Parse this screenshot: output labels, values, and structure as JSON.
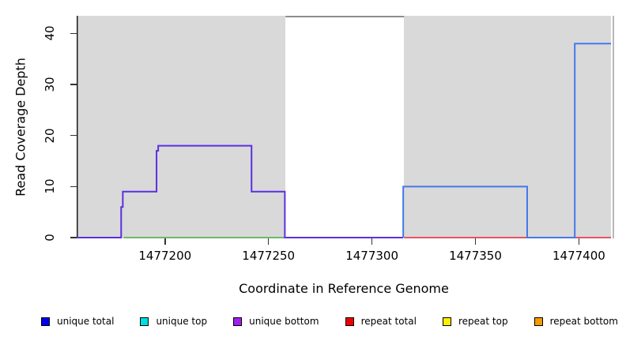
{
  "figure": {
    "xlabel": "Coordinate in Reference Genome",
    "ylabel": "Read Coverage Depth"
  },
  "chart_data": {
    "type": "line",
    "title": "",
    "xlabel": "Coordinate in Reference Genome",
    "ylabel": "Read Coverage Depth",
    "xlim": [
      1477157.3,
      1477415.5
    ],
    "ylim": [
      0,
      43.5
    ],
    "grid": false,
    "legend_position": "bottom",
    "x_ticks": [
      {
        "value": 1477200,
        "label": "1477200"
      },
      {
        "value": 1477250,
        "label": "1477250"
      },
      {
        "value": 1477300,
        "label": "1477300"
      },
      {
        "value": 1477350,
        "label": "1477350"
      },
      {
        "value": 1477400,
        "label": "1477400"
      }
    ],
    "y_ticks": [
      {
        "value": 0,
        "label": "0"
      },
      {
        "value": 10,
        "label": "10"
      },
      {
        "value": 20,
        "label": "20"
      },
      {
        "value": 30,
        "label": "30"
      },
      {
        "value": 40,
        "label": "40"
      }
    ],
    "shaded_regions": [
      {
        "name": "unique-region-left",
        "x0": 1477157.3,
        "x1": 1477258.2,
        "color": "#d9d9d9"
      },
      {
        "name": "repeat-region-right",
        "x0": 1477315.5,
        "x1": 1477415.5,
        "color": "#d9d9d9"
      }
    ],
    "series": [
      {
        "name": "green-baseline",
        "color": "#6aba6a",
        "width": 2,
        "points": [
          [
            1477180,
            0
          ],
          [
            1477258,
            0
          ]
        ]
      },
      {
        "name": "repeat-total",
        "color": "#e25566",
        "width": 2,
        "points": [
          [
            1477315.5,
            0
          ],
          [
            1477415.5,
            0
          ]
        ]
      },
      {
        "name": "unique-bottom-steps",
        "color": "#5c2fe0",
        "width": 2,
        "points": [
          [
            1477157.3,
            0
          ],
          [
            1477178.8,
            0
          ],
          [
            1477178.8,
            6
          ],
          [
            1477179.6,
            6
          ],
          [
            1477179.6,
            9
          ],
          [
            1477195.9,
            9
          ],
          [
            1477195.9,
            17
          ],
          [
            1477196.7,
            17
          ],
          [
            1477196.7,
            18
          ],
          [
            1477241.8,
            18
          ],
          [
            1477241.8,
            9
          ],
          [
            1477257.9,
            9
          ],
          [
            1477257.9,
            0
          ],
          [
            1477315.1,
            0
          ]
        ]
      },
      {
        "name": "unique-total",
        "color": "#4478ec",
        "width": 2,
        "points": [
          [
            1477315.1,
            0
          ],
          [
            1477315.1,
            10
          ],
          [
            1477375,
            10
          ],
          [
            1477375,
            0
          ],
          [
            1477398,
            0
          ],
          [
            1477398,
            38
          ],
          [
            1477415.5,
            38
          ]
        ]
      },
      {
        "name": "clipped-top-segment",
        "color": "#8e8e8e",
        "width": 2,
        "points": [
          [
            1477258.2,
            43.3
          ],
          [
            1477315.5,
            43.3
          ]
        ]
      }
    ],
    "legend": [
      {
        "label": "unique total",
        "color": "#0000ee"
      },
      {
        "label": "unique top",
        "color": "#00dddd"
      },
      {
        "label": "unique bottom",
        "color": "#a020f0"
      },
      {
        "label": "repeat total",
        "color": "#ee0000"
      },
      {
        "label": "repeat top",
        "color": "#ffee00"
      },
      {
        "label": "repeat bottom",
        "color": "#f59b00"
      }
    ]
  }
}
